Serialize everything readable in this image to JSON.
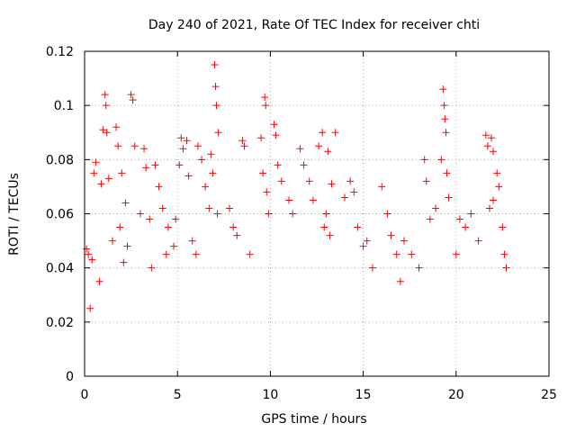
{
  "chart_data": {
    "type": "scatter",
    "title": "Day 240 of 2021, Rate Of TEC Index for receiver chti",
    "xlabel": "GPS time / hours",
    "ylabel": "ROTI / TECUs",
    "xlim": [
      0,
      25
    ],
    "ylim": [
      0,
      0.12
    ],
    "xticks": [
      0,
      5,
      10,
      15,
      20,
      25
    ],
    "xtick_labels": [
      "0",
      "5",
      "10",
      "15",
      "20",
      "25"
    ],
    "yticks": [
      0,
      0.02,
      0.04,
      0.06,
      0.08,
      0.1,
      0.12
    ],
    "ytick_labels": [
      "0",
      "0.02",
      "0.04",
      "0.06",
      "0.08",
      "0.1",
      "0.12"
    ],
    "grid": true,
    "marker": "plus",
    "color": "#ff0000",
    "points": [
      [
        0.1,
        0.047
      ],
      [
        0.2,
        0.045
      ],
      [
        0.3,
        0.025
      ],
      [
        0.5,
        0.075
      ],
      [
        0.6,
        0.079
      ],
      [
        0.4,
        0.043
      ],
      [
        1.0,
        0.091
      ],
      [
        1.1,
        0.104
      ],
      [
        1.15,
        0.1
      ],
      [
        1.2,
        0.09
      ],
      [
        1.3,
        0.073
      ],
      [
        0.9,
        0.071
      ],
      [
        1.8,
        0.085
      ],
      [
        1.7,
        0.092
      ],
      [
        2.0,
        0.075
      ],
      [
        2.2,
        0.064
      ],
      [
        2.5,
        0.104
      ],
      [
        2.6,
        0.102
      ],
      [
        2.7,
        0.085
      ],
      [
        1.5,
        0.05
      ],
      [
        1.9,
        0.055
      ],
      [
        2.3,
        0.048
      ],
      [
        2.1,
        0.042
      ],
      [
        0.8,
        0.035
      ],
      [
        3.2,
        0.084
      ],
      [
        3.3,
        0.077
      ],
      [
        3.5,
        0.058
      ],
      [
        3.0,
        0.06
      ],
      [
        3.8,
        0.078
      ],
      [
        4.0,
        0.07
      ],
      [
        4.2,
        0.062
      ],
      [
        4.5,
        0.055
      ],
      [
        4.8,
        0.048
      ],
      [
        4.4,
        0.045
      ],
      [
        3.6,
        0.04
      ],
      [
        4.9,
        0.058
      ],
      [
        5.2,
        0.088
      ],
      [
        5.3,
        0.084
      ],
      [
        5.5,
        0.087
      ],
      [
        5.1,
        0.078
      ],
      [
        5.6,
        0.074
      ],
      [
        6.1,
        0.085
      ],
      [
        6.3,
        0.08
      ],
      [
        6.5,
        0.07
      ],
      [
        6.8,
        0.082
      ],
      [
        7.0,
        0.115
      ],
      [
        7.05,
        0.107
      ],
      [
        7.1,
        0.1
      ],
      [
        7.2,
        0.09
      ],
      [
        6.9,
        0.075
      ],
      [
        6.7,
        0.062
      ],
      [
        7.15,
        0.06
      ],
      [
        6.0,
        0.045
      ],
      [
        5.8,
        0.05
      ],
      [
        7.8,
        0.062
      ],
      [
        8.0,
        0.055
      ],
      [
        8.2,
        0.052
      ],
      [
        8.5,
        0.087
      ],
      [
        8.6,
        0.085
      ],
      [
        8.9,
        0.045
      ],
      [
        9.5,
        0.088
      ],
      [
        9.6,
        0.075
      ],
      [
        9.7,
        0.103
      ],
      [
        9.75,
        0.1
      ],
      [
        9.8,
        0.068
      ],
      [
        9.9,
        0.06
      ],
      [
        10.2,
        0.093
      ],
      [
        10.3,
        0.089
      ],
      [
        10.4,
        0.078
      ],
      [
        10.6,
        0.072
      ],
      [
        11.0,
        0.065
      ],
      [
        11.2,
        0.06
      ],
      [
        11.6,
        0.084
      ],
      [
        11.8,
        0.078
      ],
      [
        12.1,
        0.072
      ],
      [
        12.3,
        0.065
      ],
      [
        12.6,
        0.085
      ],
      [
        12.8,
        0.09
      ],
      [
        13.1,
        0.083
      ],
      [
        13.3,
        0.071
      ],
      [
        13.5,
        0.09
      ],
      [
        13.0,
        0.06
      ],
      [
        12.9,
        0.055
      ],
      [
        13.2,
        0.052
      ],
      [
        14.0,
        0.066
      ],
      [
        14.3,
        0.072
      ],
      [
        14.5,
        0.068
      ],
      [
        14.7,
        0.055
      ],
      [
        15.0,
        0.048
      ],
      [
        15.2,
        0.05
      ],
      [
        16.0,
        0.07
      ],
      [
        16.3,
        0.06
      ],
      [
        16.5,
        0.052
      ],
      [
        16.8,
        0.045
      ],
      [
        17.2,
        0.05
      ],
      [
        17.6,
        0.045
      ],
      [
        18.3,
        0.08
      ],
      [
        18.4,
        0.072
      ],
      [
        18.6,
        0.058
      ],
      [
        18.9,
        0.062
      ],
      [
        19.3,
        0.106
      ],
      [
        19.35,
        0.1
      ],
      [
        19.4,
        0.095
      ],
      [
        19.45,
        0.09
      ],
      [
        19.2,
        0.08
      ],
      [
        19.5,
        0.075
      ],
      [
        19.6,
        0.066
      ],
      [
        20.2,
        0.058
      ],
      [
        20.5,
        0.055
      ],
      [
        20.8,
        0.06
      ],
      [
        21.2,
        0.05
      ],
      [
        21.6,
        0.089
      ],
      [
        21.7,
        0.085
      ],
      [
        21.9,
        0.088
      ],
      [
        22.0,
        0.083
      ],
      [
        22.2,
        0.075
      ],
      [
        22.3,
        0.07
      ],
      [
        22.0,
        0.065
      ],
      [
        21.8,
        0.062
      ],
      [
        22.5,
        0.055
      ],
      [
        22.6,
        0.045
      ],
      [
        22.7,
        0.04
      ],
      [
        20.0,
        0.045
      ],
      [
        18.0,
        0.04
      ],
      [
        17.0,
        0.035
      ],
      [
        15.5,
        0.04
      ]
    ]
  }
}
